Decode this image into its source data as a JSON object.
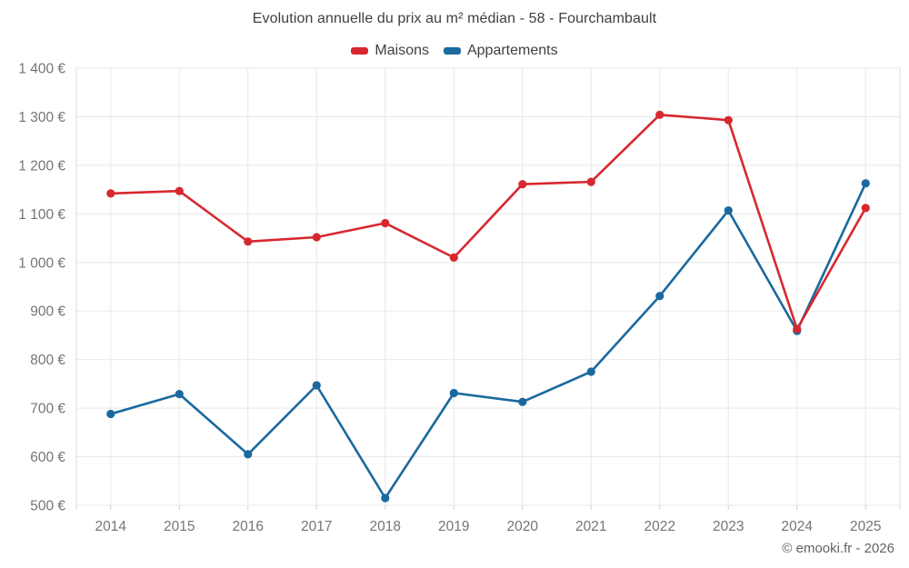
{
  "header": {
    "title": "Evolution annuelle du prix au m² médian - 58 - Fourchambault"
  },
  "legend": {
    "items": [
      {
        "label": "Maisons",
        "color": "#d7282f"
      },
      {
        "label": "Appartements",
        "color": "#1a699f"
      }
    ]
  },
  "footer": {
    "credit": "© emooki.fr - 2026"
  },
  "colors": {
    "maisons": "#d7282f",
    "appartements": "#1a699f",
    "grid": "#e8e8e8",
    "grid_boundary": "#dedede",
    "tick": "#d2d2d2",
    "axis_label": "#757575",
    "title_text": "#3f3f3f",
    "credit_text": "#5f6368"
  },
  "chart_data": {
    "type": "line",
    "title": "Evolution annuelle du prix au m² médian - 58 - Fourchambault",
    "categories": [
      "2014",
      "2015",
      "2016",
      "2017",
      "2018",
      "2019",
      "2020",
      "2021",
      "2022",
      "2023",
      "2024",
      "2025"
    ],
    "series": [
      {
        "name": "Maisons",
        "color": "#d7282f",
        "values": [
          1142,
          1147,
          1043,
          1052,
          1081,
          1010,
          1161,
          1166,
          1304,
          1293,
          863,
          1112
        ]
      },
      {
        "name": "Appartements",
        "color": "#1a699f",
        "values": [
          688,
          729,
          605,
          747,
          515,
          731,
          713,
          775,
          931,
          1107,
          859,
          1163
        ]
      }
    ],
    "xlabel": "",
    "ylabel": "",
    "ylim": [
      500,
      1400
    ],
    "y_tick_step": 100,
    "y_unit": "€",
    "grid": true,
    "legend_position": "top"
  }
}
